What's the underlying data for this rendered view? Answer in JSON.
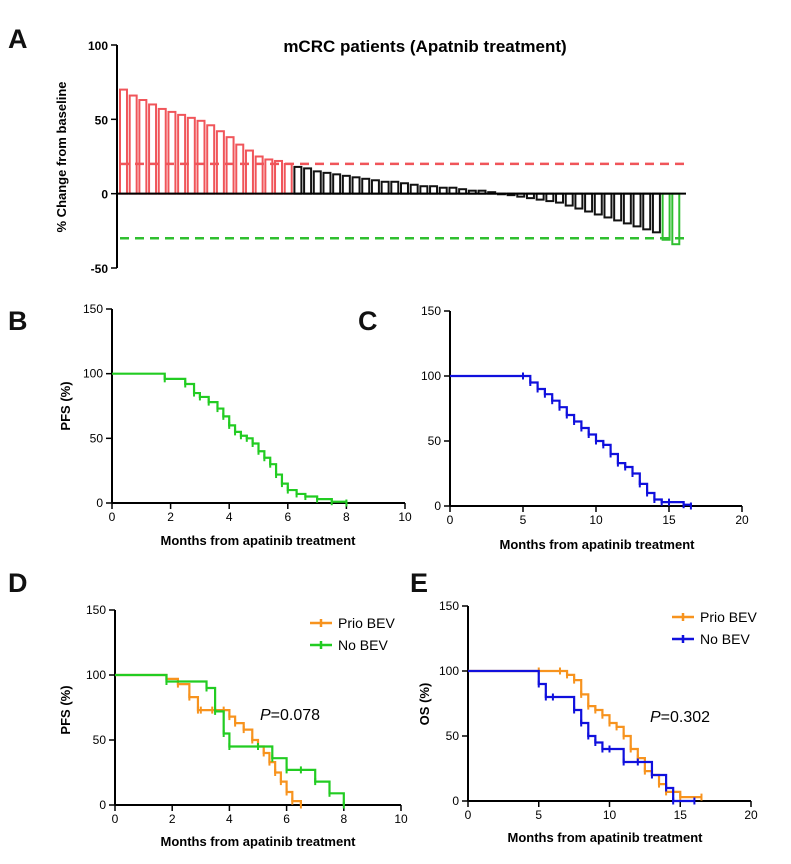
{
  "panel_labels": {
    "a": "A",
    "b": "B",
    "c": "C",
    "d": "D",
    "e": "E"
  },
  "chart_data": [
    {
      "id": "A",
      "type": "bar",
      "title": "mCRC patients (Apatnib treatment)",
      "ylabel": "% Change from baseline",
      "xlabel": "",
      "ylim": [
        -50,
        100
      ],
      "yticks": [
        -50,
        0,
        50,
        100
      ],
      "bar_style": "hollow",
      "colors": {
        "progression": "#f0555a",
        "stable": "#111111",
        "response": "#2fbf2f"
      },
      "values": [
        70,
        66,
        63,
        60,
        57,
        55,
        53,
        51,
        49,
        46,
        42,
        38,
        33,
        29,
        25,
        23,
        22,
        20,
        18,
        17,
        15,
        14,
        13,
        12,
        11,
        10,
        9,
        8,
        8,
        7,
        6,
        5,
        5,
        4,
        4,
        3,
        2,
        2,
        1,
        0,
        -1,
        -2,
        -3,
        -4,
        -5,
        -6,
        -8,
        -10,
        -12,
        -14,
        -16,
        -18,
        -20,
        -22,
        -24,
        -26,
        -31,
        -34
      ],
      "groups": [
        "progression",
        "progression",
        "progression",
        "progression",
        "progression",
        "progression",
        "progression",
        "progression",
        "progression",
        "progression",
        "progression",
        "progression",
        "progression",
        "progression",
        "progression",
        "progression",
        "progression",
        "progression",
        "stable",
        "stable",
        "stable",
        "stable",
        "stable",
        "stable",
        "stable",
        "stable",
        "stable",
        "stable",
        "stable",
        "stable",
        "stable",
        "stable",
        "stable",
        "stable",
        "stable",
        "stable",
        "stable",
        "stable",
        "stable",
        "stable",
        "stable",
        "stable",
        "stable",
        "stable",
        "stable",
        "stable",
        "stable",
        "stable",
        "stable",
        "stable",
        "stable",
        "stable",
        "stable",
        "stable",
        "stable",
        "stable",
        "response",
        "response"
      ],
      "reference_lines": [
        {
          "y": 20,
          "color": "#f0555a",
          "style": "dashed"
        },
        {
          "y": -30,
          "color": "#2fbf2f",
          "style": "dashed"
        }
      ]
    },
    {
      "id": "B",
      "type": "line",
      "title": "",
      "xlabel": "Months from apatinib treatment",
      "ylabel": "PFS (%)",
      "xlim": [
        0,
        10
      ],
      "ylim": [
        0,
        150
      ],
      "xticks": [
        0,
        2,
        4,
        6,
        8,
        10
      ],
      "yticks": [
        0,
        50,
        100,
        150
      ],
      "series": [
        {
          "color": "#22cc22",
          "x": [
            0,
            1.8,
            2.5,
            2.8,
            3.0,
            3.3,
            3.6,
            3.8,
            4.0,
            4.2,
            4.4,
            4.6,
            4.8,
            5.0,
            5.2,
            5.4,
            5.6,
            5.8,
            6.0,
            6.3,
            6.6,
            7.0,
            7.5,
            8.0
          ],
          "y": [
            100,
            96,
            92,
            85,
            82,
            78,
            73,
            67,
            60,
            55,
            52,
            50,
            46,
            40,
            35,
            30,
            22,
            15,
            10,
            7,
            5,
            3,
            1,
            0
          ]
        }
      ]
    },
    {
      "id": "C",
      "type": "line",
      "title": "",
      "xlabel": "Months from apatinib treatment",
      "ylabel": "",
      "xlim": [
        0,
        20
      ],
      "ylim": [
        0,
        150
      ],
      "xticks": [
        0,
        5,
        10,
        15,
        20
      ],
      "yticks": [
        0,
        50,
        100,
        150
      ],
      "series": [
        {
          "color": "#1010dd",
          "x": [
            0,
            5.0,
            5.5,
            6.0,
            6.5,
            7.0,
            7.5,
            8.0,
            8.5,
            9.0,
            9.5,
            10.0,
            10.5,
            11.0,
            11.5,
            12.0,
            12.5,
            13.0,
            13.5,
            14.0,
            14.5,
            15.0,
            16.0,
            16.5
          ],
          "y": [
            100,
            100,
            95,
            90,
            86,
            81,
            76,
            70,
            65,
            60,
            55,
            50,
            47,
            40,
            33,
            30,
            25,
            17,
            10,
            5,
            3,
            3,
            1,
            0
          ]
        }
      ]
    },
    {
      "id": "D",
      "type": "line",
      "title": "",
      "xlabel": "Months from apatinib treatment",
      "ylabel": "PFS (%)",
      "xlim": [
        0,
        10
      ],
      "ylim": [
        0,
        150
      ],
      "xticks": [
        0,
        2,
        4,
        6,
        8,
        10
      ],
      "yticks": [
        0,
        50,
        100,
        150
      ],
      "annotation": {
        "prefix": "P",
        "value": "=0.078"
      },
      "series": [
        {
          "name": "Prio BEV",
          "color": "#f7931e",
          "x": [
            0,
            1.8,
            2.2,
            2.6,
            2.9,
            3.0,
            3.4,
            3.8,
            4.0,
            4.2,
            4.5,
            4.8,
            5.0,
            5.2,
            5.4,
            5.6,
            5.8,
            6.0,
            6.2,
            6.5
          ],
          "y": [
            100,
            97,
            93,
            83,
            73,
            73,
            73,
            73,
            68,
            63,
            58,
            50,
            45,
            40,
            33,
            25,
            18,
            10,
            3,
            0
          ]
        },
        {
          "name": "No BEV",
          "color": "#22cc22",
          "x": [
            0,
            1.8,
            3.2,
            3.5,
            3.8,
            4.0,
            5.0,
            5.5,
            6.0,
            6.5,
            7.0,
            7.5,
            8.0
          ],
          "y": [
            100,
            95,
            90,
            72,
            55,
            45,
            45,
            36,
            27,
            27,
            18,
            9,
            0
          ]
        }
      ]
    },
    {
      "id": "E",
      "type": "line",
      "title": "",
      "xlabel": "Months from apatinib treatment",
      "ylabel": "OS (%)",
      "xlim": [
        0,
        20
      ],
      "ylim": [
        0,
        150
      ],
      "xticks": [
        0,
        5,
        10,
        15,
        20
      ],
      "yticks": [
        0,
        50,
        100,
        150
      ],
      "annotation": {
        "prefix": "P",
        "value": "=0.302"
      },
      "series": [
        {
          "name": "Prio BEV",
          "color": "#f7931e",
          "x": [
            0,
            5.0,
            6.5,
            7.0,
            7.5,
            8.0,
            8.5,
            9.0,
            9.5,
            10.0,
            10.5,
            11.0,
            11.5,
            12.0,
            12.5,
            13.0,
            13.5,
            14.0,
            15.0,
            16.5
          ],
          "y": [
            100,
            100,
            100,
            97,
            93,
            82,
            73,
            70,
            66,
            60,
            57,
            50,
            40,
            33,
            23,
            20,
            13,
            7,
            3,
            3
          ]
        },
        {
          "name": "No BEV",
          "color": "#1010dd",
          "x": [
            0,
            5.0,
            5.5,
            6.0,
            7.5,
            8.0,
            8.5,
            9.0,
            9.5,
            10.0,
            11.0,
            12.0,
            13.0,
            14.0,
            14.5,
            16.0
          ],
          "y": [
            100,
            90,
            80,
            80,
            70,
            60,
            50,
            45,
            40,
            40,
            30,
            30,
            20,
            10,
            0,
            0
          ]
        }
      ]
    }
  ]
}
